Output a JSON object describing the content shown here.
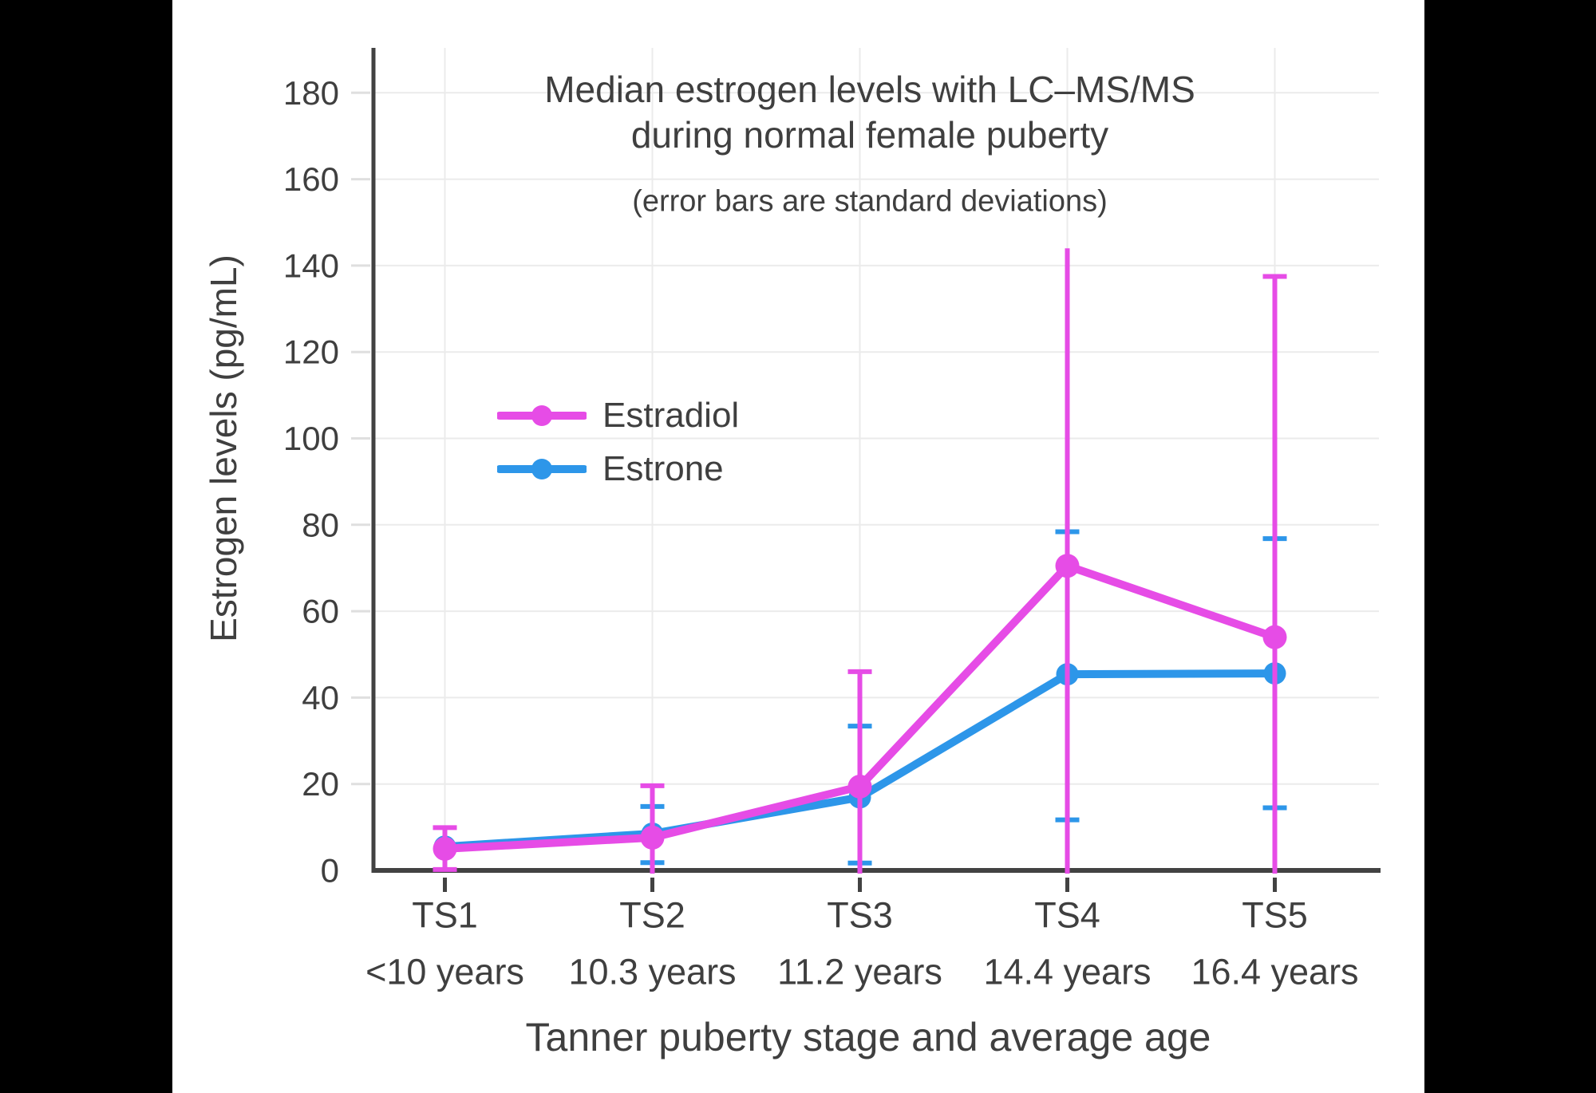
{
  "chart_data": {
    "type": "line",
    "title": "Median estrogen levels with LC–MS/MS during normal female puberty",
    "title_lines": [
      "Median estrogen levels with LC–MS/MS",
      "during normal female puberty"
    ],
    "subtitle": "(error bars are standard deviations)",
    "xlabel": "Tanner puberty stage and average age",
    "ylabel": "Estrogen levels (pg/mL)",
    "categories": [
      "TS1",
      "TS2",
      "TS3",
      "TS4",
      "TS5"
    ],
    "category_ages": [
      "<10 years",
      "10.3 years",
      "11.2 years",
      "14.4 years",
      "16.4 years"
    ],
    "yticks": [
      0,
      20,
      40,
      60,
      80,
      100,
      120,
      140,
      160,
      180
    ],
    "ylim": [
      0,
      190
    ],
    "grid": true,
    "legend_position": "inside-upper-left",
    "error_bar_meaning": "standard deviation",
    "units": "pg/mL",
    "series": [
      {
        "name": "Estradiol",
        "color": "#E64CE6",
        "values": [
          5,
          7.6,
          19.4,
          70.5,
          54
        ],
        "error_high": [
          9.9,
          19.6,
          46,
          144,
          137.5
        ],
        "error_low": [
          0.2,
          null,
          null,
          null,
          null
        ],
        "top_caps": [
          true,
          true,
          true,
          false,
          true
        ],
        "bottom_caps": [
          true,
          false,
          false,
          false,
          false
        ],
        "note_error_low_null": "error bar clipped at y=0 axis"
      },
      {
        "name": "Estrone",
        "color": "#2D96E9",
        "values": [
          5.5,
          8.5,
          16.9,
          45.4,
          45.6
        ],
        "error_high": [
          null,
          14.8,
          33.4,
          78.4,
          76.8
        ],
        "error_low": [
          null,
          1.8,
          1.7,
          11.7,
          14.5
        ],
        "top_caps": [
          false,
          true,
          true,
          true,
          true
        ],
        "bottom_caps": [
          false,
          true,
          true,
          true,
          true
        ],
        "note_error_high_null": "no error bar visible at TS1"
      }
    ],
    "draw_order": [
      1,
      0
    ],
    "colors": {
      "background": "#FFFFFF",
      "frame": "#000000",
      "text": "#3F3F3F",
      "axis": "#424242",
      "grid": "#EBEBEB",
      "y_tick": "#DFDFDF"
    }
  }
}
